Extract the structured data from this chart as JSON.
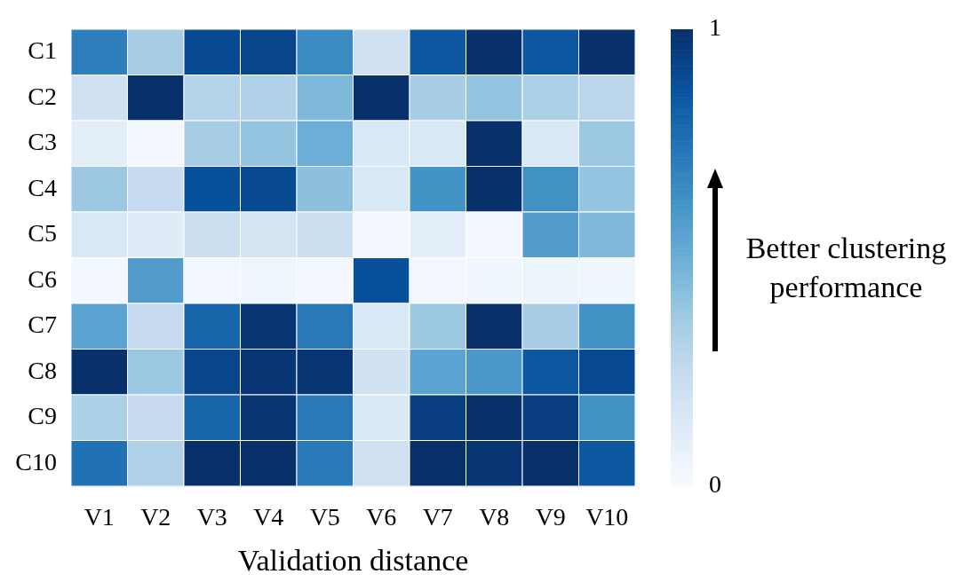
{
  "chart_data": {
    "type": "heatmap",
    "xlabel": "Validation distance",
    "categories": [
      "V1",
      "V2",
      "V3",
      "V4",
      "V5",
      "V6",
      "V7",
      "V8",
      "V9",
      "V10"
    ],
    "y_categories": [
      "C1",
      "C2",
      "C3",
      "C4",
      "C5",
      "C6",
      "C7",
      "C8",
      "C9",
      "C10"
    ],
    "cells": [
      [
        0.7,
        0.35,
        0.9,
        0.92,
        0.65,
        0.2,
        0.85,
        1.0,
        0.85,
        1.0
      ],
      [
        0.2,
        1.0,
        0.3,
        0.32,
        0.45,
        1.0,
        0.35,
        0.4,
        0.33,
        0.28
      ],
      [
        0.1,
        0.02,
        0.35,
        0.4,
        0.5,
        0.15,
        0.15,
        1.0,
        0.15,
        0.38
      ],
      [
        0.38,
        0.25,
        0.88,
        0.9,
        0.42,
        0.15,
        0.62,
        1.0,
        0.63,
        0.4
      ],
      [
        0.15,
        0.12,
        0.22,
        0.18,
        0.22,
        0.02,
        0.1,
        0.02,
        0.58,
        0.45
      ],
      [
        0.02,
        0.58,
        0.03,
        0.04,
        0.03,
        0.88,
        0.03,
        0.04,
        0.05,
        0.04
      ],
      [
        0.55,
        0.25,
        0.8,
        0.98,
        0.72,
        0.15,
        0.38,
        1.0,
        0.35,
        0.62
      ],
      [
        1.0,
        0.38,
        0.92,
        0.98,
        0.98,
        0.2,
        0.55,
        0.6,
        0.85,
        0.9
      ],
      [
        0.33,
        0.25,
        0.8,
        0.98,
        0.72,
        0.15,
        0.95,
        1.0,
        0.95,
        0.62
      ],
      [
        0.75,
        0.32,
        1.0,
        1.0,
        0.72,
        0.2,
        1.0,
        0.98,
        1.0,
        0.85
      ]
    ],
    "clim": [
      0,
      1
    ],
    "cticks": [
      0,
      1
    ],
    "annotations": [
      "Better clustering performance"
    ]
  }
}
